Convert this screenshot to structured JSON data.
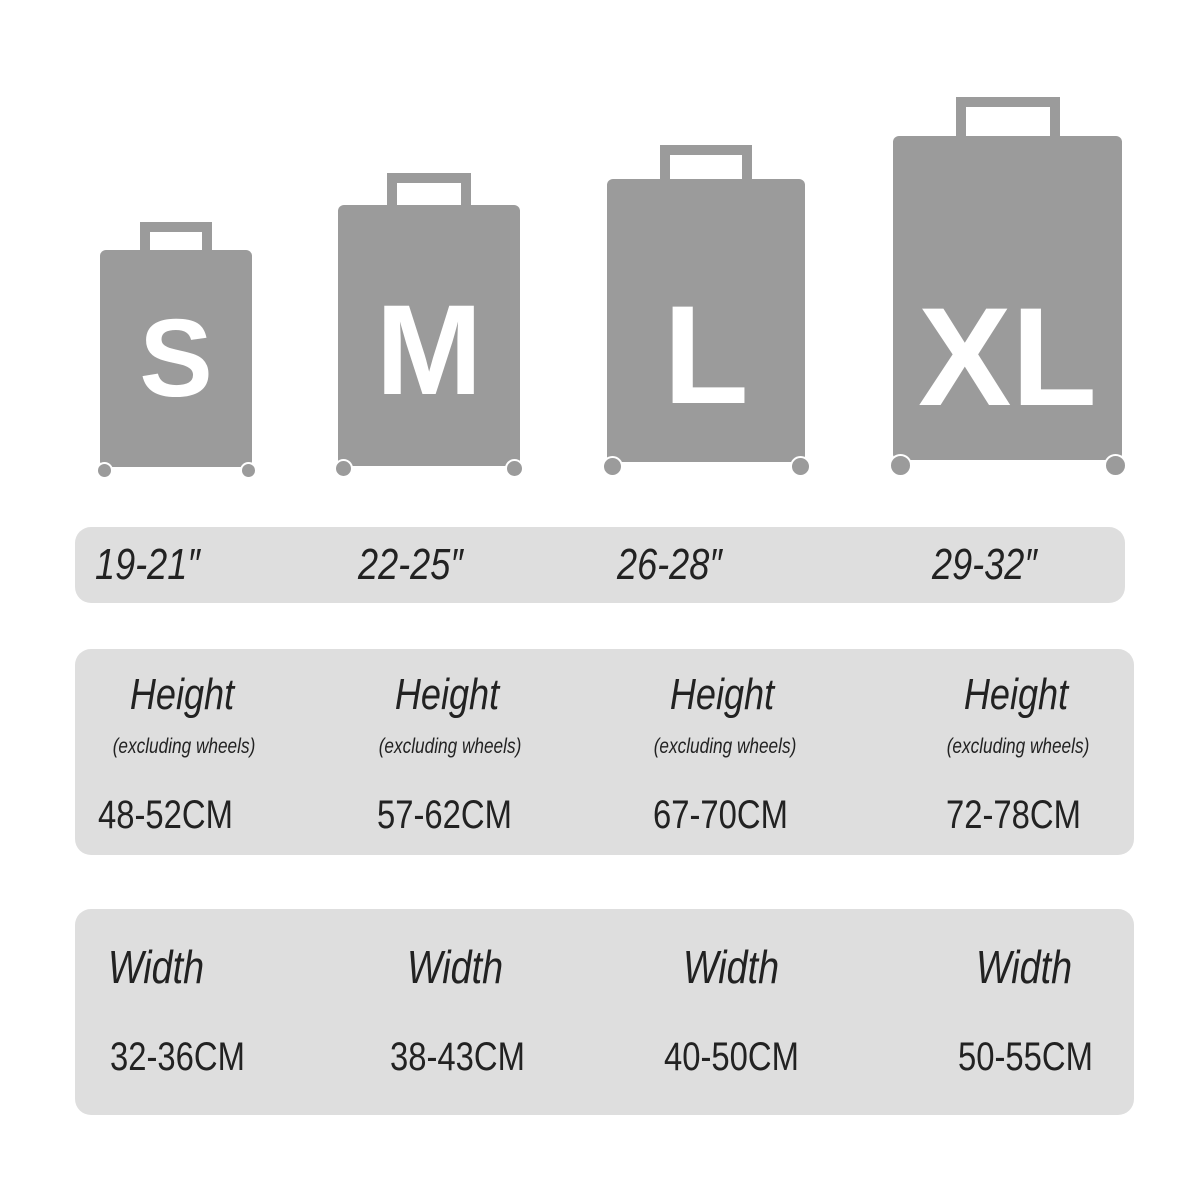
{
  "colors": {
    "suitcase": "#9b9b9b",
    "panel": "#dedede",
    "text": "#222222"
  },
  "sizes": [
    {
      "letter": "S",
      "inches": "19-21″",
      "height_label": "Height",
      "height_note": "(excluding wheels)",
      "height": "48-52CM",
      "width_label": "Width",
      "width": "32-36CM"
    },
    {
      "letter": "M",
      "inches": "22-25″",
      "height_label": "Height",
      "height_note": "(excluding wheels)",
      "height": "57-62CM",
      "width_label": "Width",
      "width": "38-43CM"
    },
    {
      "letter": "L",
      "inches": "26-28″",
      "height_label": "Height",
      "height_note": "(excluding wheels)",
      "height": "67-70CM",
      "width_label": "Width",
      "width": "40-50CM"
    },
    {
      "letter": "XL",
      "inches": "29-32″",
      "height_label": "Height",
      "height_note": "(excluding wheels)",
      "height": "72-78CM",
      "width_label": "Width",
      "width": "50-55CM"
    }
  ]
}
